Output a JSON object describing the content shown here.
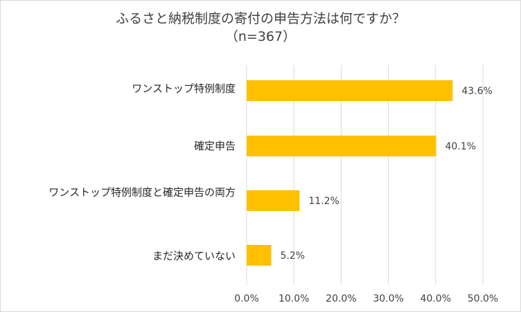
{
  "chart_data": {
    "type": "bar",
    "orientation": "horizontal",
    "title_line1": "ふるさと納税制度の寄付の申告方法は何ですか？",
    "title_line2": "（n=367）",
    "categories": [
      "ワンストップ特例制度",
      "確定申告",
      "ワンストップ特例制度と確定申告の両方",
      "まだ決めていない"
    ],
    "values": [
      43.6,
      40.1,
      11.2,
      5.2
    ],
    "data_labels": [
      "43.6%",
      "40.1%",
      "11.2%",
      "5.2%"
    ],
    "xlim": [
      0,
      50
    ],
    "xticks": [
      0,
      10,
      20,
      30,
      40,
      50
    ],
    "xtick_labels": [
      "0.0%",
      "10.0%",
      "20.0%",
      "30.0%",
      "40.0%",
      "50.0%"
    ],
    "grid": true,
    "legend": "none",
    "colors": {
      "bar": "#FFC000",
      "grid": "#d9d9d9",
      "text": "#404040"
    }
  }
}
